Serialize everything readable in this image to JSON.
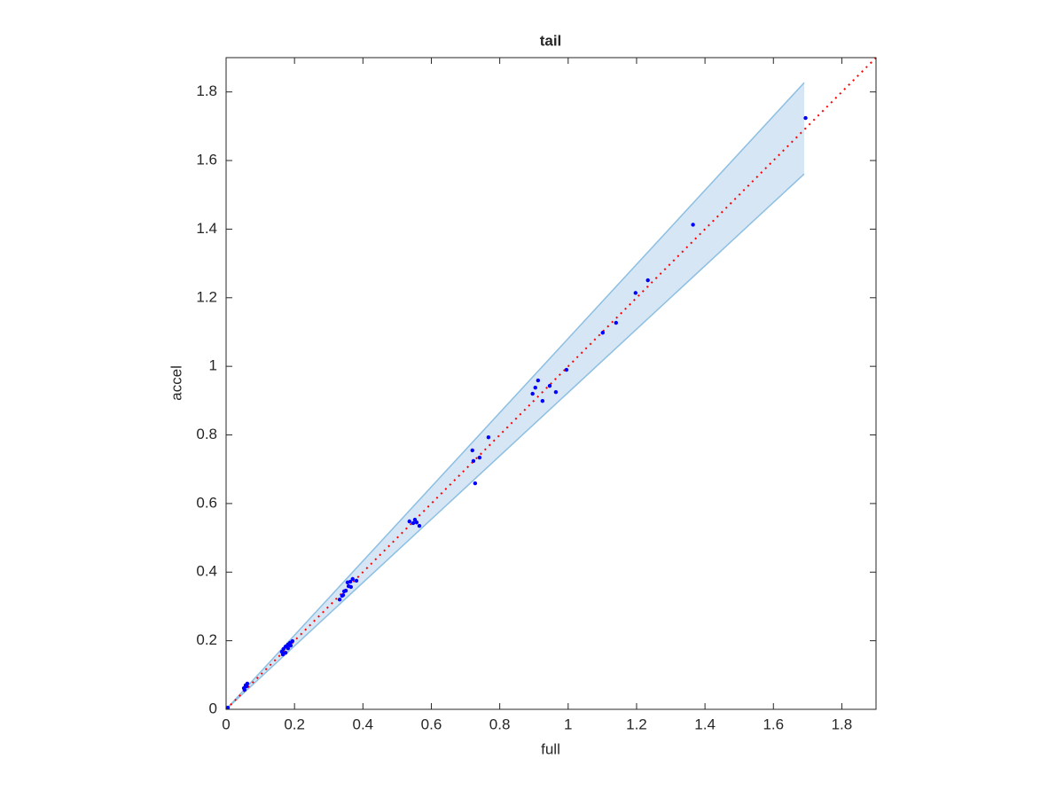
{
  "chart_data": {
    "type": "scatter",
    "title": "tail",
    "x_label": "full",
    "y_label": "accel",
    "xlim": [
      0,
      1.9
    ],
    "ylim": [
      0,
      1.9
    ],
    "xticks": [
      0,
      0.2,
      0.4,
      0.6,
      0.8,
      1,
      1.2,
      1.4,
      1.6,
      1.8
    ],
    "yticks": [
      0,
      0.2,
      0.4,
      0.6,
      0.8,
      1,
      1.2,
      1.4,
      1.6,
      1.8
    ],
    "band": {
      "x": [
        0,
        1.69
      ],
      "lower": [
        0,
        1.561
      ],
      "upper": [
        0,
        1.827
      ],
      "color": "#d6e6f4",
      "edge_color": "#8dbfe2"
    },
    "reference_line": {
      "x": [
        0,
        1.9
      ],
      "y": [
        0,
        1.9
      ],
      "color": "#ff0000"
    },
    "points": {
      "color": "#0000ff",
      "x": [
        0.005,
        0.052,
        0.057,
        0.062,
        0.06,
        0.054,
        0.163,
        0.168,
        0.174,
        0.181,
        0.187,
        0.194,
        0.174,
        0.181,
        0.189,
        0.166,
        0.332,
        0.342,
        0.35,
        0.355,
        0.363,
        0.345,
        0.358,
        0.365,
        0.339,
        0.37,
        0.381,
        0.536,
        0.547,
        0.557,
        0.565,
        0.552,
        0.72,
        0.723,
        0.741,
        0.728,
        0.767,
        0.896,
        0.904,
        0.912,
        0.925,
        0.946,
        0.964,
        0.995,
        1.101,
        1.14,
        1.197,
        1.233,
        1.365,
        1.694
      ],
      "y": [
        0.005,
        0.062,
        0.07,
        0.075,
        0.067,
        0.057,
        0.168,
        0.176,
        0.183,
        0.189,
        0.194,
        0.199,
        0.165,
        0.178,
        0.186,
        0.16,
        0.32,
        0.333,
        0.346,
        0.37,
        0.372,
        0.344,
        0.359,
        0.357,
        0.331,
        0.38,
        0.375,
        0.548,
        0.543,
        0.545,
        0.535,
        0.553,
        0.755,
        0.724,
        0.734,
        0.659,
        0.793,
        0.92,
        0.938,
        0.959,
        0.899,
        0.943,
        0.925,
        0.99,
        1.098,
        1.127,
        1.214,
        1.251,
        1.413,
        1.724
      ]
    }
  }
}
